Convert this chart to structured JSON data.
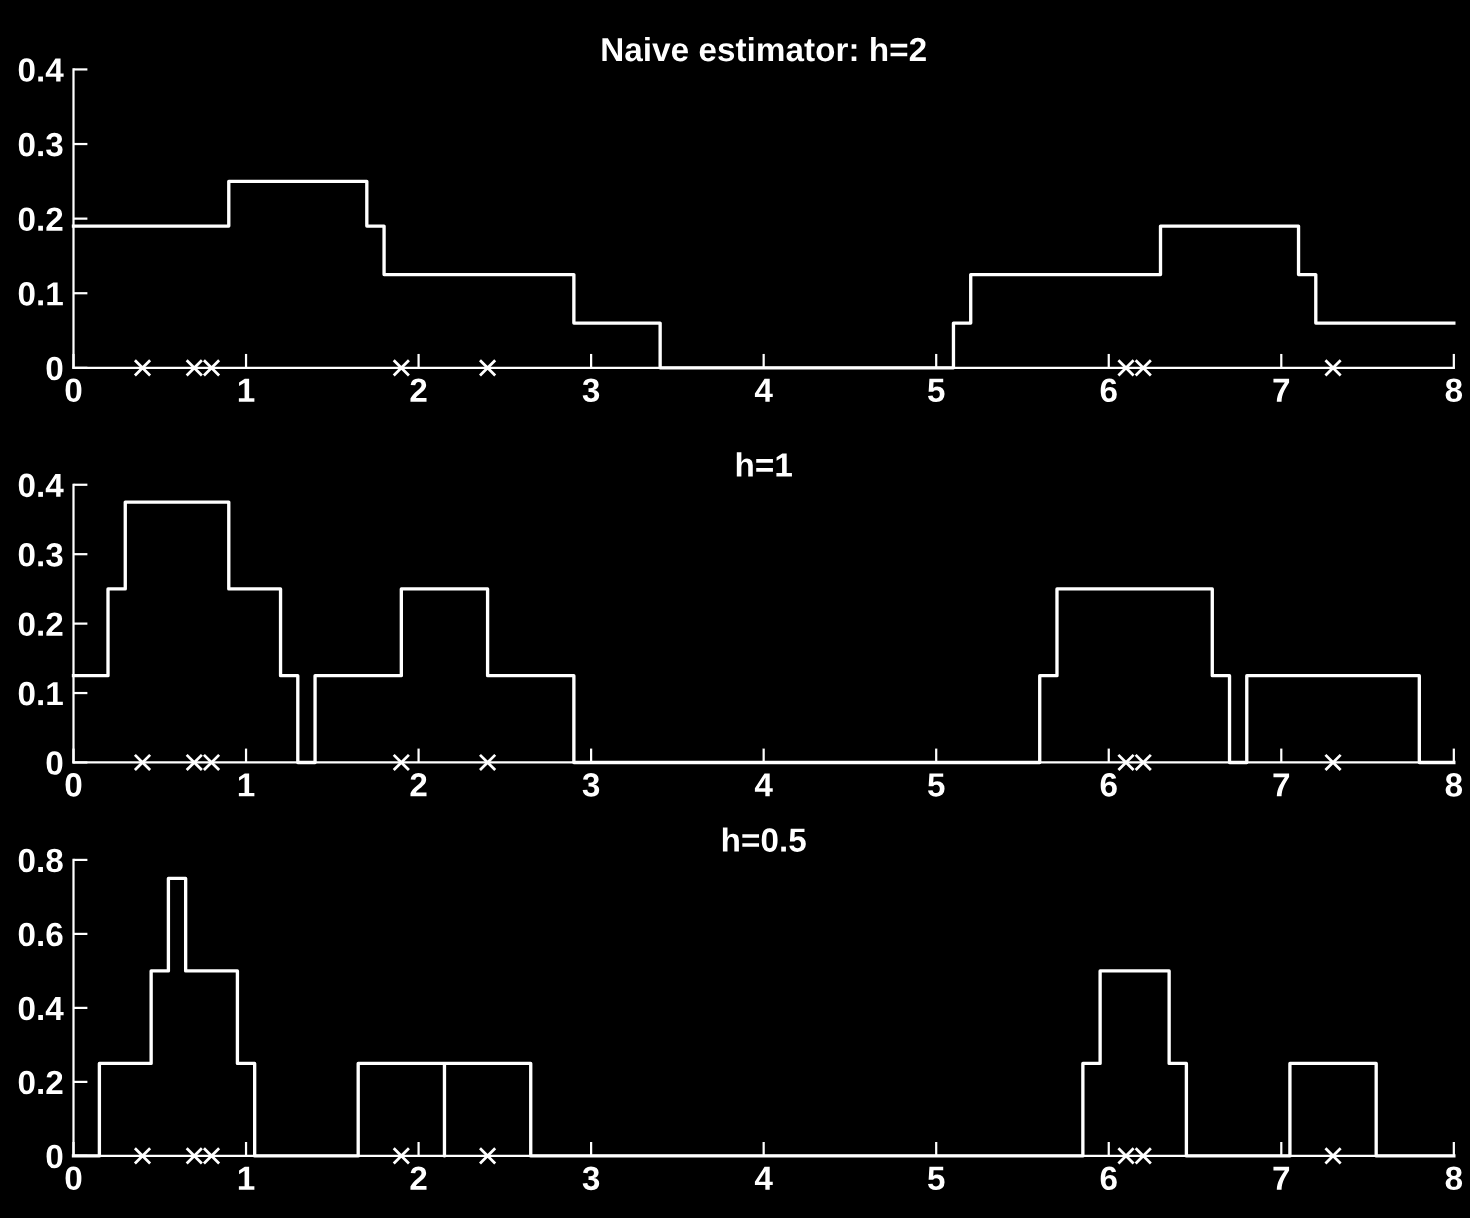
{
  "chart_data": [
    {
      "type": "step",
      "title": "Naive estimator: h=2",
      "xlim": [
        0,
        8
      ],
      "xticks": [
        0,
        1,
        2,
        3,
        4,
        5,
        6,
        7,
        8
      ],
      "ylim": [
        0,
        0.4
      ],
      "yticks": [
        0,
        0.1,
        0.2,
        0.3,
        0.4
      ],
      "series": [
        {
          "color": "#ffffff",
          "line_style": "solid",
          "x": [
            0,
            0.9,
            1.7,
            1.8,
            2.9,
            3.4,
            5.1,
            5.2,
            6.3,
            7.1,
            7.2,
            8
          ],
          "values": [
            0.19,
            0.25,
            0.19,
            0.125,
            0.06,
            0,
            0.06,
            0.125,
            0.19,
            0.125,
            0.06,
            0.06
          ]
        },
        {
          "type": "scatter",
          "color": "#ffffff",
          "marker": "cross",
          "x": [
            0.4,
            0.7,
            0.8,
            1.9,
            2.4,
            6.1,
            6.2,
            7.3
          ],
          "values": [
            0,
            0,
            0,
            0,
            0,
            0,
            0,
            0
          ]
        }
      ]
    },
    {
      "type": "step",
      "title": "h=1",
      "xlim": [
        0,
        8
      ],
      "xticks": [
        0,
        1,
        2,
        3,
        4,
        5,
        6,
        7,
        8
      ],
      "ylim": [
        0,
        0.4
      ],
      "yticks": [
        0,
        0.1,
        0.2,
        0.3,
        0.4
      ],
      "series": [
        {
          "color": "#ffffff",
          "line_style": "solid",
          "x": [
            0,
            0.2,
            0.3,
            0.9,
            1.2,
            1.3,
            1.4,
            1.9,
            2.4,
            2.9,
            5.6,
            5.7,
            6.6,
            6.7,
            6.8,
            7.8,
            8
          ],
          "values": [
            0.125,
            0.25,
            0.375,
            0.25,
            0.125,
            0,
            0.125,
            0.25,
            0.125,
            0,
            0.125,
            0.25,
            0.125,
            0,
            0.125,
            0,
            0
          ]
        },
        {
          "type": "scatter",
          "color": "#ffffff",
          "marker": "cross",
          "x": [
            0.4,
            0.7,
            0.8,
            1.9,
            2.4,
            6.1,
            6.2,
            7.3
          ],
          "values": [
            0,
            0,
            0,
            0,
            0,
            0,
            0,
            0
          ]
        }
      ]
    },
    {
      "type": "step",
      "title": "h=0.5",
      "xlim": [
        0,
        8
      ],
      "xticks": [
        0,
        1,
        2,
        3,
        4,
        5,
        6,
        7,
        8
      ],
      "ylim": [
        0,
        0.8
      ],
      "yticks": [
        0,
        0.2,
        0.4,
        0.6,
        0.8
      ],
      "series": [
        {
          "color": "#ffffff",
          "line_style": "solid",
          "x": [
            0,
            0.15,
            0.45,
            0.55,
            0.65,
            0.95,
            1.05,
            1.65,
            2.15,
            2.15,
            2.65,
            5.85,
            5.95,
            6.35,
            6.45,
            7.05,
            7.55,
            8
          ],
          "values": [
            0,
            0.25,
            0.5,
            0.75,
            0.5,
            0.25,
            0,
            0.25,
            0,
            0.25,
            0,
            0.25,
            0.5,
            0.25,
            0,
            0.25,
            0,
            0
          ]
        },
        {
          "type": "scatter",
          "color": "#ffffff",
          "marker": "cross",
          "x": [
            0.4,
            0.7,
            0.8,
            1.9,
            2.4,
            6.1,
            6.2,
            7.3
          ],
          "values": [
            0,
            0,
            0,
            0,
            0,
            0,
            0,
            0
          ]
        }
      ]
    }
  ]
}
